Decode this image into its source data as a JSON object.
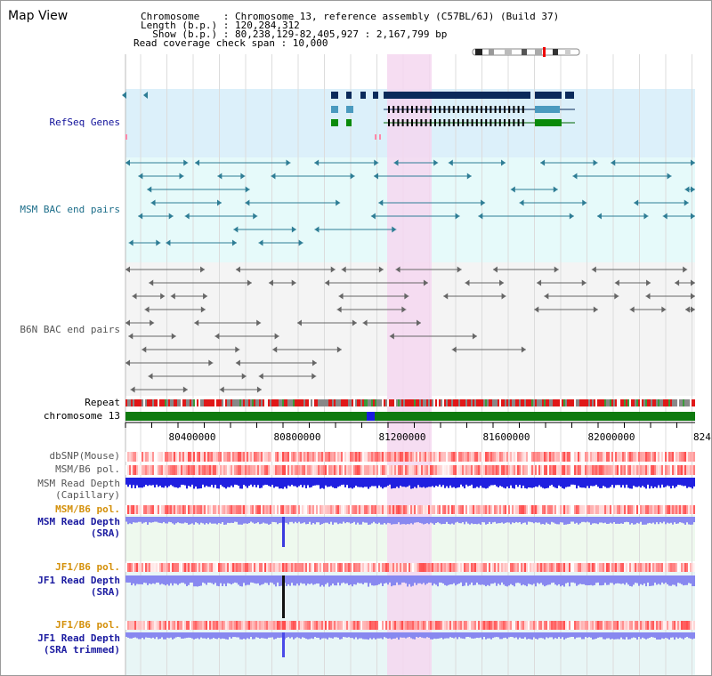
{
  "header": {
    "title": "Map View",
    "chromosome": "Chromosome    : Chromosome 13, reference assembly (C57BL/6J) (Build 37)",
    "length": "Length (b.p.) : 120,284,312",
    "show": "  Show (b.p.) : 80,238,129-82,405,927 : 2,167,799 bp",
    "coverage_span": "Read coverage check span : 10,000"
  },
  "tracks": {
    "refseq": "RefSeq Genes",
    "msm_bac": "MSM BAC end pairs",
    "b6n_bac": "B6N BAC end pairs",
    "repeat": "Repeat",
    "chromosome": "chromosome 13",
    "dbsnp": "dbSNP(Mouse)",
    "msm_b6_pol": "MSM/B6 pol.",
    "msm_depth_cap_1": "MSM Read Depth",
    "msm_depth_cap_2": "(Capillary)",
    "msm_b6_pol2": "MSM/B6 pol.",
    "msm_depth_sra_1": "MSM Read Depth",
    "msm_depth_sra_2": "(SRA)",
    "jf1_b6_pol": "JF1/B6 pol.",
    "jf1_depth_sra_1": "JF1 Read Depth",
    "jf1_depth_sra_2": "(SRA)",
    "jf1_b6_pol2": "JF1/B6 pol.",
    "jf1_depth_trim_1": "JF1 Read Depth",
    "jf1_depth_trim_2": "(SRA trimmed)"
  },
  "axis": {
    "ticks": [
      "80400000",
      "80800000",
      "81200000",
      "81600000",
      "82000000",
      "824"
    ]
  },
  "colors": {
    "refseq_bg": "#dcf0fa",
    "msm_bg": "#e6fafa",
    "b6n_bg": "#f4f4f4",
    "highlight": "#f5d7f0",
    "teal": "#2e7d95",
    "navy": "#0a2a5a",
    "gray_feature": "#666666",
    "green_chrom": "#0f7a0f",
    "depth_blue": "#2020e0",
    "depth_light": "#8888f0",
    "pol_label_orange": "#d4900a",
    "sra_label_blue": "#1a1aa0"
  }
}
